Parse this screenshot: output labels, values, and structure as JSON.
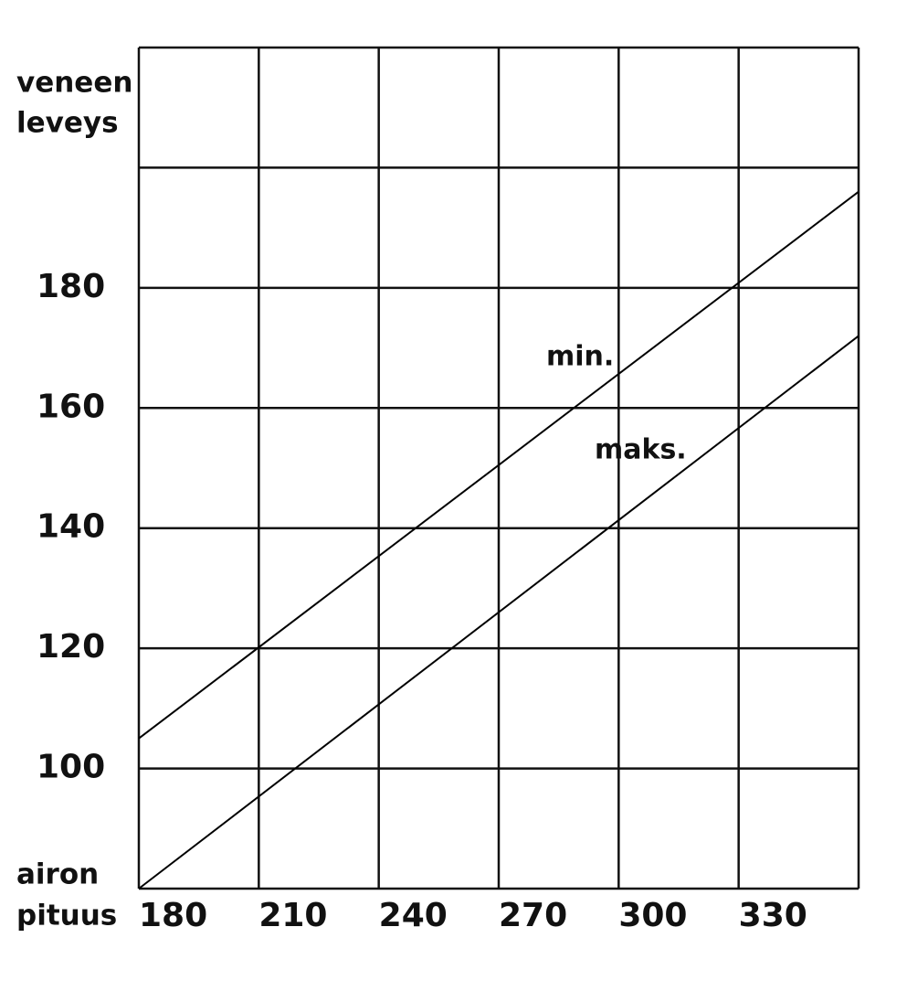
{
  "chart_data": {
    "type": "line",
    "y_label": [
      "veneen",
      "leveys"
    ],
    "x_label": [
      "airon",
      "pituus"
    ],
    "x": [
      180,
      360
    ],
    "series": [
      {
        "name": "min.",
        "color": "#000000",
        "values": [
          105,
          196
        ]
      },
      {
        "name": "maks.",
        "color": "#000000",
        "values": [
          80,
          172
        ]
      }
    ],
    "xlim": [
      180,
      360
    ],
    "xticks": [
      180,
      210,
      240,
      270,
      300,
      330
    ],
    "ylim": [
      80,
      220
    ],
    "yticks": [
      100,
      120,
      140,
      160,
      180
    ],
    "xgrid": [
      180,
      210,
      240,
      270,
      300,
      330,
      360
    ],
    "ygrid": [
      80,
      100,
      120,
      140,
      160,
      180,
      200,
      220
    ],
    "grid": true,
    "legend": false
  }
}
